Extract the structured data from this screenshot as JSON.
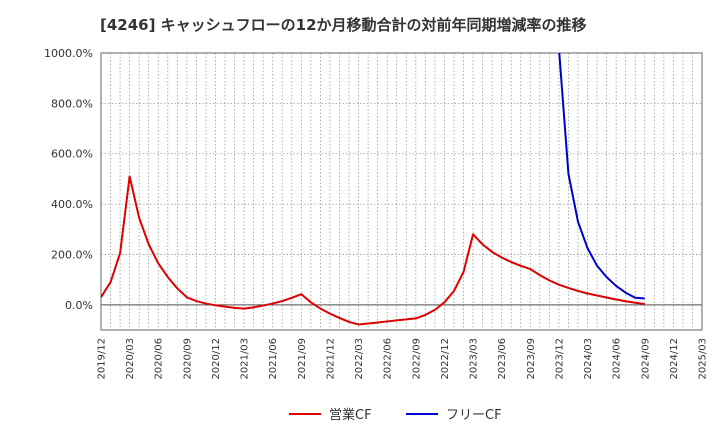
{
  "chart_data": {
    "type": "line",
    "title": "[4246]  キャッシュフローの12か月移動合計の対前年同期増減率の推移",
    "xlabel": "",
    "ylabel": "",
    "ylim": [
      -100,
      1000
    ],
    "yticks": [
      0,
      200,
      400,
      600,
      800,
      1000
    ],
    "ytick_labels": [
      "0.0%",
      "200.0%",
      "400.0%",
      "600.0%",
      "800.0%",
      "1000.0%"
    ],
    "x_start": "2019-12",
    "x_end": "2025-03",
    "xtick_labels": [
      "2019/12",
      "2020/03",
      "2020/06",
      "2020/09",
      "2020/12",
      "2021/03",
      "2021/06",
      "2021/09",
      "2021/12",
      "2022/03",
      "2022/06",
      "2022/09",
      "2022/12",
      "2023/03",
      "2023/06",
      "2023/09",
      "2023/12",
      "2024/03",
      "2024/06",
      "2024/09",
      "2024/12",
      "2025/03"
    ],
    "grid": true,
    "legend_position": "bottom-center",
    "series": [
      {
        "name": "営業CF",
        "color": "#dd0000",
        "points": [
          [
            "2019-12",
            30
          ],
          [
            "2020-01",
            90
          ],
          [
            "2020-02",
            205
          ],
          [
            "2020-03",
            510
          ],
          [
            "2020-04",
            345
          ],
          [
            "2020-05",
            240
          ],
          [
            "2020-06",
            165
          ],
          [
            "2020-07",
            110
          ],
          [
            "2020-08",
            65
          ],
          [
            "2020-09",
            30
          ],
          [
            "2020-10",
            15
          ],
          [
            "2020-11",
            5
          ],
          [
            "2020-12",
            -2
          ],
          [
            "2021-01",
            -7
          ],
          [
            "2021-02",
            -12
          ],
          [
            "2021-03",
            -15
          ],
          [
            "2021-04",
            -10
          ],
          [
            "2021-05",
            -3
          ],
          [
            "2021-06",
            5
          ],
          [
            "2021-07",
            15
          ],
          [
            "2021-08",
            28
          ],
          [
            "2021-09",
            42
          ],
          [
            "2021-10",
            10
          ],
          [
            "2021-11",
            -15
          ],
          [
            "2021-12",
            -35
          ],
          [
            "2022-01",
            -52
          ],
          [
            "2022-02",
            -68
          ],
          [
            "2022-03",
            -78
          ],
          [
            "2022-04",
            -74
          ],
          [
            "2022-05",
            -70
          ],
          [
            "2022-06",
            -66
          ],
          [
            "2022-07",
            -62
          ],
          [
            "2022-08",
            -58
          ],
          [
            "2022-09",
            -54
          ],
          [
            "2022-10",
            -40
          ],
          [
            "2022-11",
            -20
          ],
          [
            "2022-12",
            10
          ],
          [
            "2023-01",
            55
          ],
          [
            "2023-02",
            130
          ],
          [
            "2023-03",
            280
          ],
          [
            "2023-04",
            240
          ],
          [
            "2023-05",
            210
          ],
          [
            "2023-06",
            188
          ],
          [
            "2023-07",
            170
          ],
          [
            "2023-08",
            155
          ],
          [
            "2023-09",
            142
          ],
          [
            "2023-10",
            118
          ],
          [
            "2023-11",
            97
          ],
          [
            "2023-12",
            80
          ],
          [
            "2024-01",
            67
          ],
          [
            "2024-02",
            55
          ],
          [
            "2024-03",
            45
          ],
          [
            "2024-04",
            37
          ],
          [
            "2024-05",
            29
          ],
          [
            "2024-06",
            21
          ],
          [
            "2024-07",
            14
          ],
          [
            "2024-08",
            8
          ],
          [
            "2024-09",
            3
          ]
        ]
      },
      {
        "name": "フリーCF",
        "color": "#0000cc",
        "points": [
          [
            "2023-12",
            1020
          ],
          [
            "2024-01",
            520
          ],
          [
            "2024-02",
            330
          ],
          [
            "2024-03",
            225
          ],
          [
            "2024-04",
            155
          ],
          [
            "2024-05",
            110
          ],
          [
            "2024-06",
            75
          ],
          [
            "2024-07",
            48
          ],
          [
            "2024-08",
            28
          ],
          [
            "2024-09",
            25
          ]
        ]
      }
    ]
  }
}
